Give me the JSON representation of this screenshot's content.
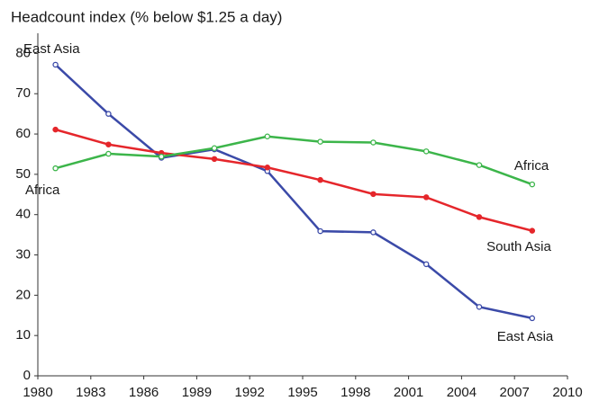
{
  "chart_data": {
    "type": "line",
    "title": "Headcount index (% below $1.25 a day)",
    "x": [
      1981,
      1984,
      1987,
      1990,
      1993,
      1996,
      1999,
      2002,
      2005,
      2008
    ],
    "series": [
      {
        "name": "East Asia",
        "color": "#3b4aa8",
        "values": [
          77.2,
          65.0,
          54.1,
          56.2,
          50.8,
          35.9,
          35.6,
          27.7,
          17.1,
          14.3
        ]
      },
      {
        "name": "South Asia",
        "color": "#e5262b",
        "values": [
          61.1,
          57.4,
          55.3,
          53.8,
          51.7,
          48.6,
          45.1,
          44.3,
          39.4,
          36.0
        ]
      },
      {
        "name": "Africa",
        "color": "#3cb54a",
        "values": [
          51.5,
          55.1,
          54.4,
          56.5,
          59.4,
          58.1,
          57.9,
          55.7,
          52.3,
          47.5
        ]
      }
    ],
    "annotations": [
      "East Asia",
      "Africa"
    ],
    "xlim": [
      1980,
      2010
    ],
    "xticks": [
      1980,
      1983,
      1986,
      1989,
      1992,
      1995,
      1998,
      2001,
      2004,
      2007,
      2010
    ],
    "ylim": [
      0,
      85
    ],
    "yticks": [
      0,
      10,
      20,
      30,
      40,
      50,
      60,
      70,
      80
    ]
  }
}
